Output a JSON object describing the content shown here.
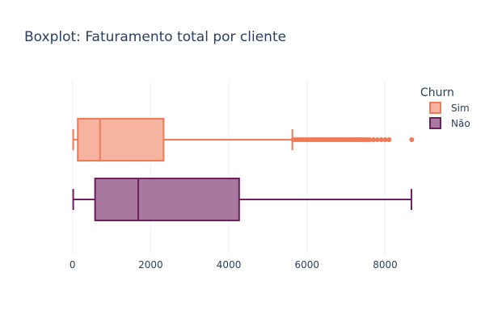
{
  "chart_data": {
    "type": "boxplot",
    "title": "Boxplot: Faturamento total por cliente",
    "xlabel": "",
    "ylabel": "",
    "orientation": "horizontal",
    "xlim": [
      -200,
      8900
    ],
    "xticks": [
      0,
      2000,
      4000,
      6000,
      8000
    ],
    "xtick_labels": [
      "0",
      "2000",
      "4000",
      "6000",
      "8000"
    ],
    "grid": true,
    "legend": {
      "title": "Churn",
      "placement": "top-right"
    },
    "series": [
      {
        "name": "Sim",
        "color": "#ef7b57",
        "fill": "#f6b39f",
        "min": 19,
        "q1": 135,
        "median": 704,
        "q3": 2331,
        "whisker_high": 5625,
        "outliers": [
          5650,
          5700,
          5750,
          5800,
          5850,
          5900,
          5950,
          6000,
          6050,
          6100,
          6150,
          6200,
          6250,
          6300,
          6350,
          6400,
          6450,
          6500,
          6550,
          6600,
          6650,
          6700,
          6750,
          6800,
          6850,
          6900,
          6950,
          7000,
          7050,
          7100,
          7150,
          7200,
          7250,
          7300,
          7350,
          7400,
          7450,
          7500,
          7550,
          7600,
          7700,
          7800,
          7900,
          8000,
          8100,
          8680
        ]
      },
      {
        "name": "Não",
        "color": "#6e1f5e",
        "fill": "#a8789f",
        "min": 19,
        "q1": 578,
        "median": 1683,
        "q3": 4264,
        "whisker_high": 8672,
        "outliers": []
      }
    ]
  }
}
